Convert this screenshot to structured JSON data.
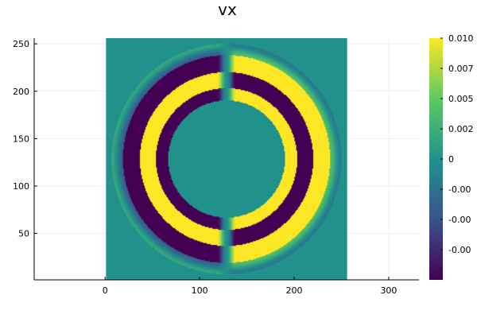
{
  "chart_data": {
    "type": "heatmap",
    "title": "vx",
    "xlabel": "",
    "ylabel": "",
    "xlim": [
      -75,
      332
    ],
    "ylim": [
      1,
      256
    ],
    "data_extent": {
      "x": [
        1,
        256
      ],
      "y": [
        1,
        256
      ]
    },
    "x_ticks": [
      0,
      100,
      200,
      300
    ],
    "x_tick_labels": [
      "0",
      "100",
      "200",
      "300"
    ],
    "y_ticks": [
      50,
      100,
      150,
      200,
      250
    ],
    "y_tick_labels": [
      "50",
      "100",
      "150",
      "200",
      "250"
    ],
    "grid": true,
    "colormap": "viridis",
    "colormap_colors": [
      "#440154",
      "#3b528b",
      "#21918c",
      "#5ec962",
      "#fde725"
    ],
    "clim": [
      -0.01,
      0.01
    ],
    "colorbar_ticks": [
      0.01,
      0.0075,
      0.005,
      0.0025,
      0,
      -0.0025,
      -0.005,
      -0.0075
    ],
    "colorbar_tick_labels": [
      "0.010",
      "0.007",
      "0.005",
      "0.002",
      "0",
      "-0.00",
      "-0.00",
      "-0.00"
    ],
    "field": {
      "center": [
        128,
        128
      ],
      "description_units": "data units",
      "inner_disc_radius": 62,
      "inner_ring": [
        62,
        75
      ],
      "outer_ring": [
        75,
        110
      ],
      "outer_ring_left_split": 92,
      "edge_halo": [
        110,
        122
      ],
      "center_gap_halfwidth": 10,
      "left_values": {
        "inner_ring": -0.01,
        "outer_inner": 0.01,
        "outer_outer": -0.01,
        "halo": 0.002
      },
      "right_values": {
        "inner_ring": 0.01,
        "outer_inner": -0.01,
        "outer_outer": 0.01,
        "halo": -0.002
      },
      "background": 0
    }
  }
}
